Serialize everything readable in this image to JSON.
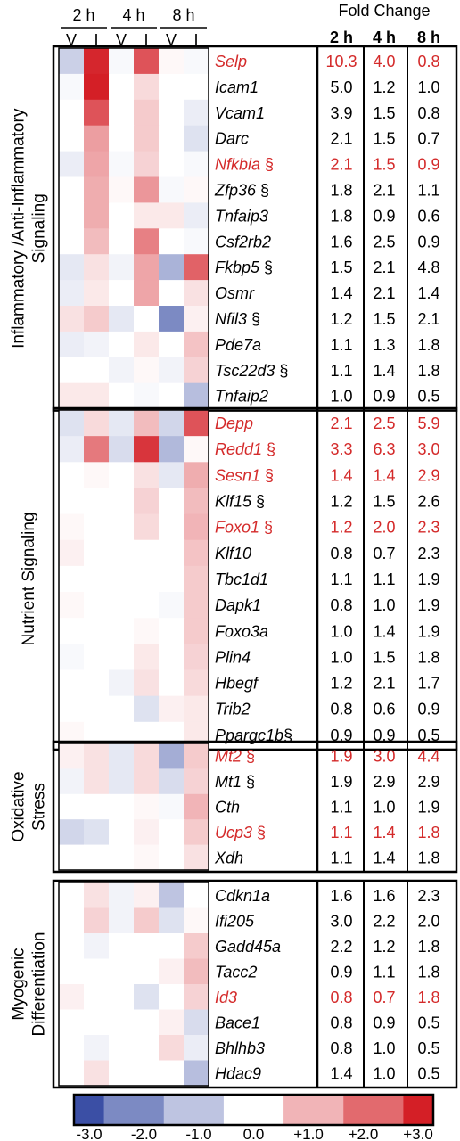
{
  "chart_data": {
    "type": "heatmap",
    "time_groups": [
      "2 h",
      "4 h",
      "8 h"
    ],
    "columns": [
      "V",
      "I",
      "V",
      "I",
      "V",
      "I"
    ],
    "fold_change_title": "Fold Change",
    "fold_change_columns": [
      "2 h",
      "4 h",
      "8 h"
    ],
    "colorbar": {
      "ticks": [
        "-3.0",
        "-2.0",
        "-1.0",
        "0.0",
        "+1.0",
        "+2.0",
        "+3.0"
      ],
      "min": -3,
      "max": 3,
      "colors": {
        "low": "#3b4fa5",
        "mid": "#ffffff",
        "high": "#d41f26"
      }
    },
    "highlight_color": "#d42a2a",
    "groups": [
      {
        "label_lines": [
          "Inflammatory /Anti-Inflammatory",
          "Signaling"
        ],
        "rows": [
          {
            "gene": "Selp",
            "suffix": "",
            "red": true,
            "fold": [
              "10.3",
              "4.0",
              "0.8"
            ],
            "cells": [
              -0.8,
              2.9,
              -0.1,
              2.3,
              0.1,
              -0.1
            ]
          },
          {
            "gene": "Icam1",
            "suffix": "",
            "red": false,
            "fold": [
              "5.0",
              "1.2",
              "1.0"
            ],
            "cells": [
              -0.1,
              3.0,
              0.0,
              0.5,
              0.0,
              0.0
            ]
          },
          {
            "gene": "Vcam1",
            "suffix": "",
            "red": false,
            "fold": [
              "3.9",
              "1.5",
              "0.8"
            ],
            "cells": [
              0.0,
              2.3,
              0.0,
              0.7,
              0.0,
              -0.3
            ]
          },
          {
            "gene": "Darc",
            "suffix": "",
            "red": false,
            "fold": [
              "2.1",
              "1.5",
              "0.7"
            ],
            "cells": [
              0.0,
              1.3,
              0.0,
              0.7,
              0.0,
              -0.5
            ]
          },
          {
            "gene": "Nfkbia",
            "suffix": " §",
            "red": true,
            "fold": [
              "2.1",
              "1.5",
              "0.9"
            ],
            "cells": [
              -0.3,
              1.2,
              -0.1,
              0.6,
              0.0,
              -0.1
            ]
          },
          {
            "gene": "Zfp36",
            "suffix": " §",
            "red": false,
            "fold": [
              "1.8",
              "2.1",
              "1.1"
            ],
            "cells": [
              0.0,
              1.1,
              0.1,
              1.4,
              -0.1,
              0.1
            ]
          },
          {
            "gene": "Tnfaip3",
            "suffix": "",
            "red": false,
            "fold": [
              "1.8",
              "0.9",
              "0.6"
            ],
            "cells": [
              0.0,
              1.1,
              0.0,
              0.3,
              0.3,
              -0.3
            ]
          },
          {
            "gene": "Csf2rb2",
            "suffix": "",
            "red": false,
            "fold": [
              "1.6",
              "2.5",
              "0.9"
            ],
            "cells": [
              0.0,
              0.9,
              0.0,
              1.7,
              0.0,
              -0.1
            ]
          },
          {
            "gene": "Fkbp5",
            "suffix": " §",
            "red": false,
            "fold": [
              "1.5",
              "2.1",
              "4.8"
            ],
            "cells": [
              -0.4,
              0.4,
              -0.2,
              1.2,
              -1.3,
              2.1
            ]
          },
          {
            "gene": "Osmr",
            "suffix": "",
            "red": false,
            "fold": [
              "1.4",
              "2.1",
              "1.4"
            ],
            "cells": [
              -0.3,
              0.3,
              0.0,
              1.2,
              0.0,
              0.4
            ]
          },
          {
            "gene": "Nfil3",
            "suffix": " §",
            "red": false,
            "fold": [
              "1.2",
              "1.5",
              "2.1"
            ],
            "cells": [
              0.4,
              0.7,
              -0.4,
              0.0,
              -2.0,
              0.2
            ]
          },
          {
            "gene": "Pde7a",
            "suffix": "",
            "red": false,
            "fold": [
              "1.1",
              "1.3",
              "1.8"
            ],
            "cells": [
              -0.3,
              -0.2,
              0.0,
              0.3,
              0.0,
              0.8
            ]
          },
          {
            "gene": "Tsc22d3",
            "suffix": " §",
            "red": false,
            "fold": [
              "1.1",
              "1.4",
              "1.8"
            ],
            "cells": [
              0.0,
              0.0,
              -0.2,
              0.1,
              -0.2,
              0.6
            ]
          },
          {
            "gene": "Tnfaip2",
            "suffix": "",
            "red": false,
            "fold": [
              "1.0",
              "0.9",
              "0.5"
            ],
            "cells": [
              0.3,
              0.3,
              0.0,
              -0.1,
              0.0,
              -1.1
            ]
          }
        ]
      },
      {
        "label_lines": [
          "Nutrient Signaling"
        ],
        "rows": [
          {
            "gene": "Depp",
            "suffix": "",
            "red": true,
            "fold": [
              "2.1",
              "2.5",
              "5.9"
            ],
            "cells": [
              -0.5,
              0.5,
              -0.4,
              0.9,
              -0.7,
              2.3
            ]
          },
          {
            "gene": "Redd1",
            "suffix": " §",
            "red": true,
            "fold": [
              "3.3",
              "6.3",
              "3.0"
            ],
            "cells": [
              -0.3,
              1.8,
              -0.6,
              2.7,
              -1.2,
              0.1
            ]
          },
          {
            "gene": "Sesn1",
            "suffix": " §",
            "red": true,
            "fold": [
              "1.4",
              "1.4",
              "2.9"
            ],
            "cells": [
              0.0,
              0.1,
              0.0,
              0.4,
              -0.4,
              1.1
            ]
          },
          {
            "gene": "Klf15",
            "suffix": " §",
            "red": false,
            "fold": [
              "1.2",
              "1.5",
              "2.6"
            ],
            "cells": [
              0.0,
              0.0,
              0.0,
              0.6,
              0.0,
              0.9
            ]
          },
          {
            "gene": "Foxo1",
            "suffix": " §",
            "red": true,
            "fold": [
              "1.2",
              "2.0",
              "2.3"
            ],
            "cells": [
              0.1,
              0.0,
              0.0,
              0.5,
              0.0,
              1.0
            ]
          },
          {
            "gene": "Klf10",
            "suffix": "",
            "red": false,
            "fold": [
              "0.8",
              "0.7",
              "2.3"
            ],
            "cells": [
              0.2,
              0.0,
              0.0,
              0.0,
              0.0,
              0.8
            ]
          },
          {
            "gene": "Tbc1d1",
            "suffix": "",
            "red": false,
            "fold": [
              "1.1",
              "1.1",
              "1.9"
            ],
            "cells": [
              0.0,
              0.0,
              0.0,
              0.0,
              0.0,
              0.7
            ]
          },
          {
            "gene": "Dapk1",
            "suffix": "",
            "red": false,
            "fold": [
              "0.8",
              "1.0",
              "1.9"
            ],
            "cells": [
              0.1,
              0.0,
              0.0,
              0.0,
              -0.1,
              0.7
            ]
          },
          {
            "gene": "Foxo3a",
            "suffix": "",
            "red": false,
            "fold": [
              "1.0",
              "1.4",
              "1.9"
            ],
            "cells": [
              0.0,
              0.0,
              0.0,
              0.1,
              0.0,
              0.7
            ]
          },
          {
            "gene": "Plin4",
            "suffix": "",
            "red": false,
            "fold": [
              "1.0",
              "1.5",
              "1.8"
            ],
            "cells": [
              -0.1,
              0.0,
              0.0,
              0.3,
              0.0,
              0.6
            ]
          },
          {
            "gene": "Hbegf",
            "suffix": "",
            "red": false,
            "fold": [
              "1.2",
              "2.1",
              "1.7"
            ],
            "cells": [
              0.0,
              0.0,
              -0.2,
              0.4,
              0.0,
              0.5
            ]
          },
          {
            "gene": "Trib2",
            "suffix": "",
            "red": false,
            "fold": [
              "0.8",
              "0.6",
              "0.9"
            ],
            "cells": [
              0.0,
              0.0,
              0.0,
              -0.5,
              0.2,
              0.3
            ]
          },
          {
            "gene": "Ppargc1b",
            "suffix": "§",
            "red": false,
            "fold": [
              "0.9",
              "0.9",
              "0.5"
            ],
            "cells": [
              0.1,
              0.0,
              0.0,
              0.0,
              0.0,
              0.3
            ]
          }
        ]
      },
      {
        "label_lines": [
          "Oxidative",
          "Stress"
        ],
        "rows": [
          {
            "gene": "Mt2",
            "suffix": " §",
            "red": true,
            "fold": [
              "1.9",
              "3.0",
              "4.4"
            ],
            "cells": [
              0.2,
              0.4,
              -0.4,
              0.5,
              -1.4,
              0.7
            ]
          },
          {
            "gene": "Mt1",
            "suffix": " §",
            "red": false,
            "fold": [
              "1.9",
              "2.9",
              "2.9"
            ],
            "cells": [
              -0.2,
              0.4,
              -0.4,
              0.5,
              -0.6,
              0.6
            ]
          },
          {
            "gene": "Cth",
            "suffix": "",
            "red": false,
            "fold": [
              "1.1",
              "1.0",
              "1.9"
            ],
            "cells": [
              0.0,
              0.0,
              0.0,
              0.1,
              -0.1,
              1.0
            ]
          },
          {
            "gene": "Ucp3",
            "suffix": " §",
            "red": true,
            "fold": [
              "1.1",
              "1.4",
              "1.8"
            ],
            "cells": [
              -0.7,
              -0.5,
              0.0,
              0.2,
              0.0,
              0.7
            ]
          },
          {
            "gene": "Xdh",
            "suffix": "",
            "red": false,
            "fold": [
              "1.1",
              "1.4",
              "1.8"
            ],
            "cells": [
              0.0,
              0.0,
              0.0,
              0.1,
              0.0,
              0.4
            ]
          }
        ]
      },
      {
        "label_lines": [
          "Myogenic",
          "Differentiation"
        ],
        "rows": [
          {
            "gene": "Cdkn1a",
            "suffix": "",
            "red": false,
            "fold": [
              "1.6",
              "1.6",
              "2.3"
            ],
            "cells": [
              0.0,
              0.4,
              -0.2,
              0.2,
              -1.0,
              0.0
            ]
          },
          {
            "gene": "Ifi205",
            "suffix": "",
            "red": false,
            "fold": [
              "3.0",
              "2.2",
              "2.0"
            ],
            "cells": [
              0.0,
              0.6,
              -0.2,
              0.7,
              -0.5,
              0.1
            ]
          },
          {
            "gene": "Gadd45a",
            "suffix": "",
            "red": false,
            "fold": [
              "2.2",
              "1.2",
              "1.8"
            ],
            "cells": [
              0.0,
              -0.2,
              0.0,
              0.0,
              0.0,
              0.7
            ]
          },
          {
            "gene": "Tacc2",
            "suffix": "",
            "red": false,
            "fold": [
              "0.9",
              "1.1",
              "1.8"
            ],
            "cells": [
              0.0,
              0.0,
              0.0,
              0.0,
              0.2,
              0.9
            ]
          },
          {
            "gene": "Id3",
            "suffix": "",
            "red": true,
            "fold": [
              "0.8",
              "0.7",
              "1.8"
            ],
            "cells": [
              0.2,
              0.0,
              0.0,
              -0.5,
              0.0,
              0.6
            ]
          },
          {
            "gene": "Bace1",
            "suffix": "",
            "red": false,
            "fold": [
              "0.8",
              "0.9",
              "0.5"
            ],
            "cells": [
              0.0,
              0.0,
              0.0,
              0.0,
              0.2,
              -0.6
            ]
          },
          {
            "gene": "Bhlhb3",
            "suffix": "",
            "red": false,
            "fold": [
              "0.8",
              "1.0",
              "0.5"
            ],
            "cells": [
              0.0,
              -0.2,
              0.0,
              0.0,
              0.5,
              -0.3
            ]
          },
          {
            "gene": "Hdac9",
            "suffix": "",
            "red": false,
            "fold": [
              "1.4",
              "1.0",
              "0.5"
            ],
            "cells": [
              0.0,
              0.4,
              0.0,
              0.0,
              0.0,
              -1.1
            ]
          }
        ]
      }
    ]
  }
}
